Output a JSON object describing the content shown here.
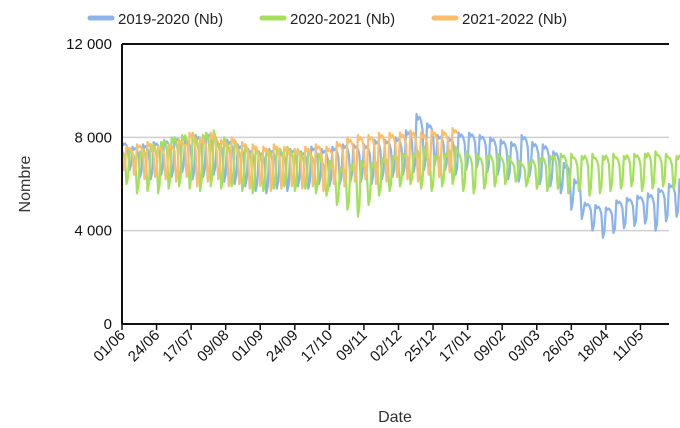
{
  "chart_data": {
    "type": "line",
    "xlabel": "Date",
    "ylabel": "Nombre",
    "ylim": [
      0,
      12000
    ],
    "y_ticks": [
      {
        "value": 0,
        "label": "0"
      },
      {
        "value": 4000,
        "label": "4 000"
      },
      {
        "value": 8000,
        "label": "8 000"
      },
      {
        "value": 12000,
        "label": "12 000"
      }
    ],
    "x_ticks": [
      "01/06",
      "24/06",
      "17/07",
      "09/08",
      "01/09",
      "24/09",
      "17/10",
      "09/11",
      "02/12",
      "25/12",
      "17/01",
      "09/02",
      "03/03",
      "26/03",
      "18/04",
      "11/05"
    ],
    "x_tick_spacing_days": 23,
    "x_range_days": [
      0,
      364
    ],
    "grid": "horizontal",
    "legend_position": "top",
    "series": [
      {
        "name": "2019-2020 (Nb)",
        "color": "#8cb4ec",
        "weekly_min_max": [
          [
            6600,
            7800
          ],
          [
            6300,
            7600
          ],
          [
            6200,
            7700
          ],
          [
            6400,
            7800
          ],
          [
            6300,
            7900
          ],
          [
            6500,
            8000
          ],
          [
            6200,
            7900
          ],
          [
            6300,
            8100
          ],
          [
            6400,
            8200
          ],
          [
            6100,
            7800
          ],
          [
            6000,
            7900
          ],
          [
            5900,
            7700
          ],
          [
            5700,
            7500
          ],
          [
            5600,
            7400
          ],
          [
            5800,
            7500
          ],
          [
            5700,
            7400
          ],
          [
            5900,
            7500
          ],
          [
            5800,
            7400
          ],
          [
            6000,
            7600
          ],
          [
            5900,
            7500
          ],
          [
            6000,
            7600
          ],
          [
            6100,
            7700
          ],
          [
            6100,
            7700
          ],
          [
            6000,
            7700
          ],
          [
            6200,
            7900
          ],
          [
            6300,
            7900
          ],
          [
            6400,
            8000
          ],
          [
            6500,
            8300
          ],
          [
            6600,
            9000
          ],
          [
            6800,
            8600
          ],
          [
            6600,
            8100
          ],
          [
            6400,
            8000
          ],
          [
            6600,
            8200
          ],
          [
            6700,
            8200
          ],
          [
            6500,
            8100
          ],
          [
            6400,
            8000
          ],
          [
            6200,
            7900
          ],
          [
            6100,
            7800
          ],
          [
            6300,
            8100
          ],
          [
            6000,
            7800
          ],
          [
            5900,
            7700
          ],
          [
            5600,
            7400
          ],
          [
            4900,
            6900
          ],
          [
            4500,
            6200
          ],
          [
            4000,
            5200
          ],
          [
            3700,
            5100
          ],
          [
            3900,
            5000
          ],
          [
            4100,
            5300
          ],
          [
            4200,
            5400
          ],
          [
            4300,
            5500
          ],
          [
            4000,
            5600
          ],
          [
            4400,
            5800
          ],
          [
            4600,
            6000
          ],
          [
            4800,
            6200
          ],
          [
            5100,
            6500
          ],
          [
            5500,
            6800
          ]
        ]
      },
      {
        "name": "2020-2021 (Nb)",
        "color": "#a4e05c",
        "weekly_min_max": [
          [
            6000,
            7500
          ],
          [
            5600,
            7400
          ],
          [
            5700,
            7600
          ],
          [
            5600,
            7800
          ],
          [
            5800,
            8000
          ],
          [
            5900,
            8100
          ],
          [
            5800,
            8200
          ],
          [
            5700,
            8100
          ],
          [
            5900,
            8300
          ],
          [
            5800,
            8000
          ],
          [
            5900,
            7800
          ],
          [
            5700,
            7600
          ],
          [
            5600,
            7500
          ],
          [
            5700,
            7400
          ],
          [
            5800,
            7500
          ],
          [
            5900,
            7600
          ],
          [
            5700,
            7500
          ],
          [
            5800,
            7400
          ],
          [
            5600,
            7300
          ],
          [
            5500,
            7000
          ],
          [
            5100,
            6700
          ],
          [
            4900,
            6800
          ],
          [
            4600,
            7000
          ],
          [
            5100,
            6900
          ],
          [
            5500,
            7100
          ],
          [
            5700,
            7200
          ],
          [
            5900,
            7300
          ],
          [
            6000,
            7300
          ],
          [
            5800,
            7600
          ],
          [
            5700,
            7200
          ],
          [
            5900,
            7300
          ],
          [
            6000,
            7600
          ],
          [
            5700,
            7400
          ],
          [
            5600,
            7300
          ],
          [
            5800,
            7200
          ],
          [
            5900,
            7300
          ],
          [
            6000,
            7200
          ],
          [
            6100,
            7000
          ],
          [
            5900,
            6900
          ],
          [
            5800,
            7100
          ],
          [
            5700,
            7200
          ],
          [
            5800,
            7300
          ],
          [
            5600,
            7300
          ],
          [
            5700,
            7200
          ],
          [
            5500,
            7300
          ],
          [
            5600,
            7200
          ],
          [
            5700,
            7300
          ],
          [
            5800,
            7200
          ],
          [
            5900,
            7300
          ],
          [
            5700,
            7300
          ],
          [
            5800,
            7400
          ],
          [
            5900,
            7300
          ],
          [
            5800,
            7200
          ],
          [
            5700,
            7300
          ],
          [
            5900,
            7400
          ],
          [
            6100,
            7600
          ]
        ]
      },
      {
        "name": "2021-2022 (Nb)",
        "color": "#fbbe6a",
        "weekly_min_max": [
          [
            6600,
            7600
          ],
          [
            6400,
            7700
          ],
          [
            6200,
            7800
          ],
          [
            6300,
            7600
          ],
          [
            6200,
            7700
          ],
          [
            6100,
            7900
          ],
          [
            6300,
            8200
          ],
          [
            5900,
            8000
          ],
          [
            6100,
            8200
          ],
          [
            6200,
            7900
          ],
          [
            5900,
            8000
          ],
          [
            6000,
            7800
          ],
          [
            5800,
            7700
          ],
          [
            5900,
            7600
          ],
          [
            5700,
            7700
          ],
          [
            5800,
            7600
          ],
          [
            5900,
            7500
          ],
          [
            5800,
            7600
          ],
          [
            5900,
            7700
          ],
          [
            5700,
            7600
          ],
          [
            6000,
            7800
          ],
          [
            5900,
            8000
          ],
          [
            6100,
            8100
          ],
          [
            6200,
            8100
          ],
          [
            6000,
            8200
          ],
          [
            6100,
            8200
          ],
          [
            6300,
            8200
          ],
          [
            6200,
            8300
          ],
          [
            6100,
            8200
          ],
          [
            6400,
            8300
          ],
          [
            6300,
            8300
          ],
          [
            6500,
            8400
          ]
        ]
      }
    ]
  }
}
